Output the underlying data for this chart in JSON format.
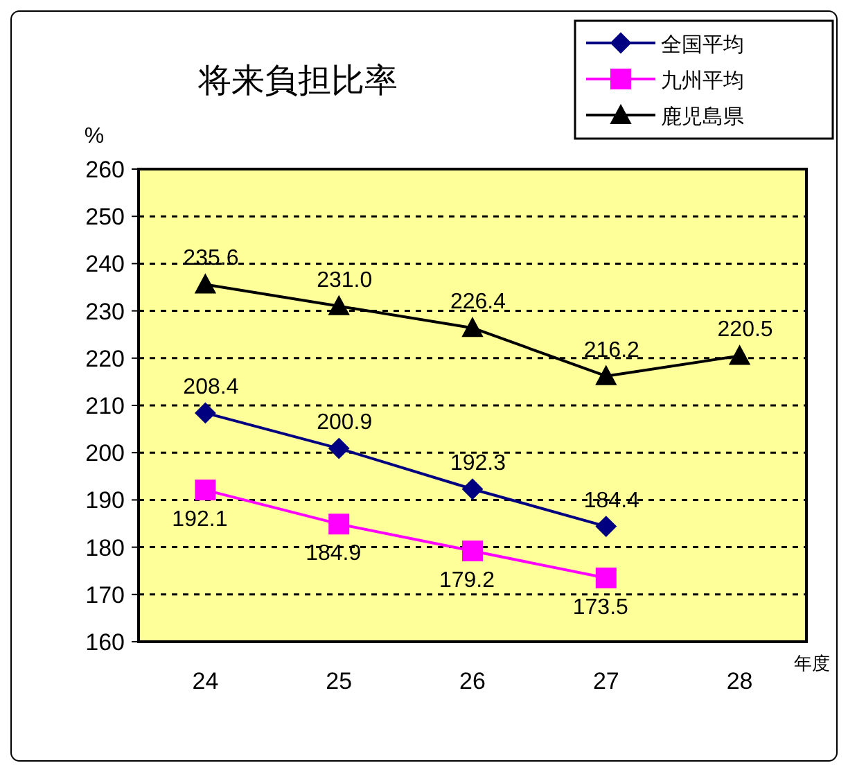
{
  "chart_data": {
    "type": "line",
    "title": "将来負担比率",
    "ylabel": "%",
    "xlabel": "年度",
    "categories": [
      "24",
      "25",
      "26",
      "27",
      "28"
    ],
    "series": [
      {
        "name": "全国平均",
        "color": "#000080",
        "marker": "diamond",
        "values": [
          208.4,
          200.9,
          192.3,
          184.4,
          null
        ],
        "value_labels": [
          "208.4",
          "200.9",
          "192.3",
          "184.4",
          null
        ]
      },
      {
        "name": "九州平均",
        "color": "#ff00ff",
        "marker": "square",
        "values": [
          192.1,
          184.9,
          179.2,
          173.5,
          null
        ],
        "value_labels": [
          "192.1",
          "184.9",
          "179.2",
          "173.5",
          null
        ]
      },
      {
        "name": "鹿児島県",
        "color": "#000000",
        "marker": "triangle",
        "values": [
          235.6,
          231.0,
          226.4,
          216.2,
          220.5
        ],
        "value_labels": [
          "235.6",
          "231.0",
          "226.4",
          "216.2",
          "220.5"
        ]
      }
    ],
    "ylim": [
      160,
      260
    ],
    "yticks": [
      160,
      170,
      180,
      190,
      200,
      210,
      220,
      230,
      240,
      250,
      260
    ],
    "grid": "y",
    "legend": "top right",
    "line_style": "solid"
  }
}
